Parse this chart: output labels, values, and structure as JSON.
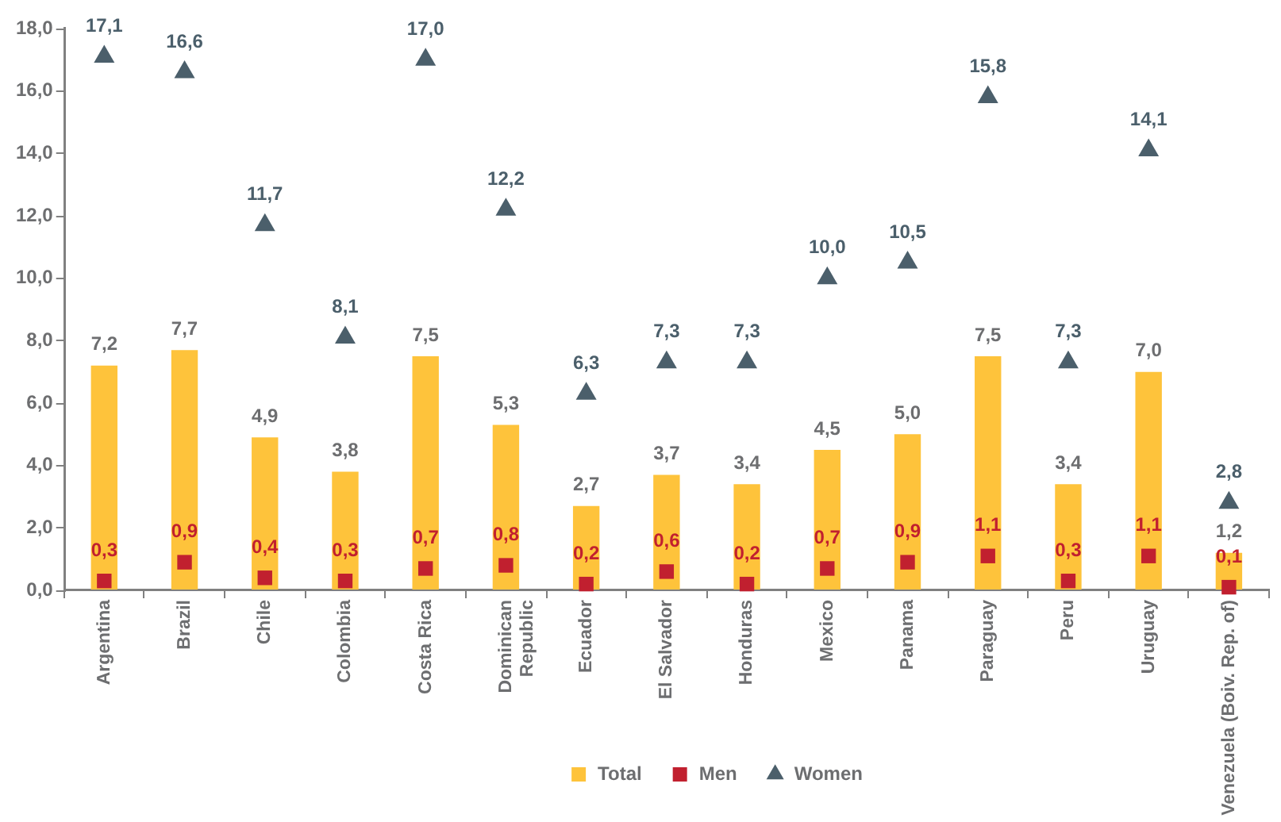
{
  "chart_data": {
    "type": "bar",
    "categories": [
      "Argentina",
      "Brazil",
      "Chile",
      "Colombia",
      "Costa Rica",
      "Dominican\nRepublic",
      "Ecuador",
      "El Salvador",
      "Honduras",
      "Mexico",
      "Panama",
      "Paraguay",
      "Peru",
      "Uruguay",
      "Venezuela (Boiv. Rep. of)"
    ],
    "series": [
      {
        "name": "Total",
        "color": "#fec33b",
        "values": [
          7.2,
          7.7,
          4.9,
          3.8,
          7.5,
          5.3,
          2.7,
          3.7,
          3.4,
          4.5,
          5.0,
          7.5,
          3.4,
          7.0,
          1.2
        ],
        "value_labels": [
          "7,2",
          "7,7",
          "4,9",
          "3,8",
          "7,5",
          "5,3",
          "2,7",
          "3,7",
          "3,4",
          "4,5",
          "5,0",
          "7,5",
          "3,4",
          "7,0",
          "1,2"
        ]
      },
      {
        "name": "Men",
        "type": "scatter",
        "marker": "square",
        "color": "#c1202f",
        "values": [
          0.3,
          0.9,
          0.4,
          0.3,
          0.7,
          0.8,
          0.2,
          0.6,
          0.2,
          0.7,
          0.9,
          1.1,
          0.3,
          1.1,
          0.1
        ],
        "value_labels": [
          "0,3",
          "0,9",
          "0,4",
          "0,3",
          "0,7",
          "0,8",
          "0,2",
          "0,6",
          "0,2",
          "0,7",
          "0,9",
          "1,1",
          "0,3",
          "1,1",
          "0,1"
        ]
      },
      {
        "name": "Women",
        "type": "scatter",
        "marker": "triangle",
        "color": "#4b5f6b",
        "values": [
          17.1,
          16.6,
          11.7,
          8.1,
          17.0,
          12.2,
          6.3,
          7.3,
          7.3,
          10.0,
          10.5,
          15.8,
          7.3,
          14.1,
          2.8
        ],
        "value_labels": [
          "17,1",
          "16,6",
          "11,7",
          "8,1",
          "17,0",
          "12,2",
          "6,3",
          "7,3",
          "7,3",
          "10,0",
          "10,5",
          "15,8",
          "7,3",
          "14,1",
          "2,8"
        ]
      }
    ],
    "ylim": [
      0,
      18
    ],
    "yticks": [
      {
        "value": 0,
        "label": "0,0"
      },
      {
        "value": 2,
        "label": "2,0"
      },
      {
        "value": 4,
        "label": "4,0"
      },
      {
        "value": 6,
        "label": "6,0"
      },
      {
        "value": 8,
        "label": "8,0"
      },
      {
        "value": 10,
        "label": "10,0"
      },
      {
        "value": 12,
        "label": "12,0"
      },
      {
        "value": 14,
        "label": "14,0"
      },
      {
        "value": 16,
        "label": "16,0"
      },
      {
        "value": 18,
        "label": "18,0"
      }
    ],
    "grid": false,
    "legend": "bottom"
  }
}
